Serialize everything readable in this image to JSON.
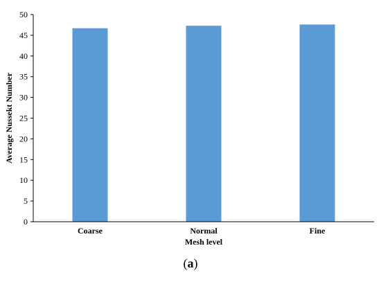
{
  "chart_data": {
    "type": "bar",
    "categories": [
      "Coarse",
      "Normal",
      "Fine"
    ],
    "values": [
      46.7,
      47.3,
      47.6
    ],
    "xlabel": "Mesh level",
    "ylabel": "Average Nussekt Number",
    "ylim": [
      0,
      50
    ],
    "yticks": [
      0,
      5,
      10,
      15,
      20,
      25,
      30,
      35,
      40,
      45,
      50
    ],
    "bar_color": "#5b9bd5",
    "grid": false,
    "legend": "none"
  },
  "caption": {
    "open": "(",
    "letter": "a",
    "close": ")"
  }
}
